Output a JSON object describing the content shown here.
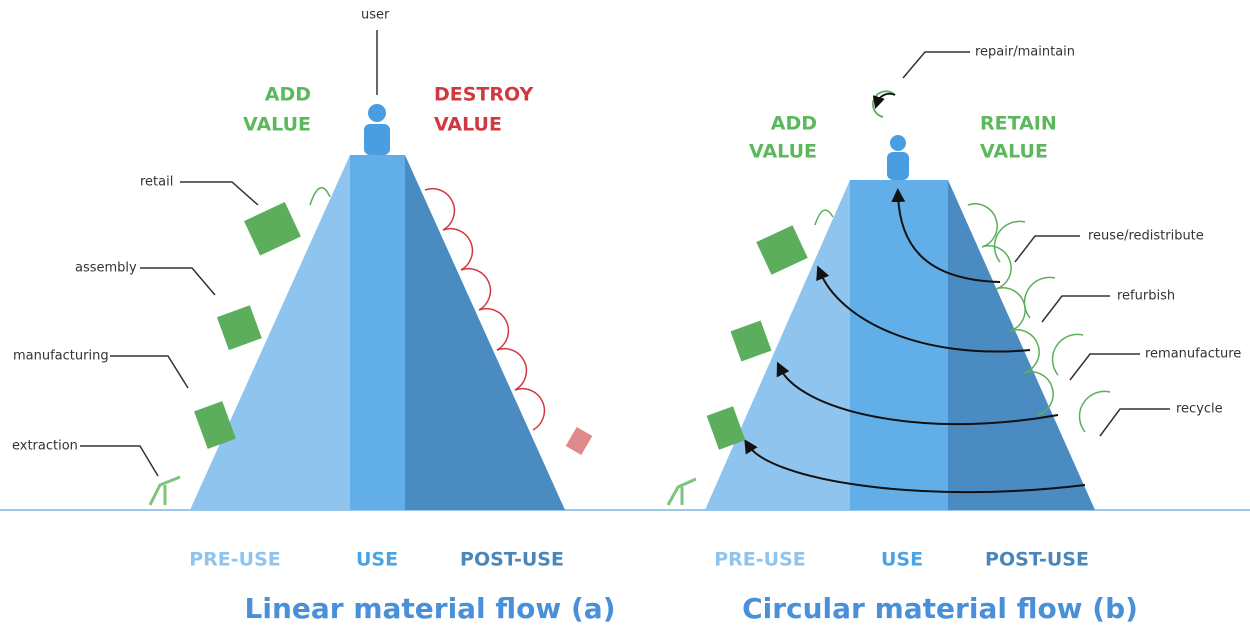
{
  "panels": [
    {
      "caption": "Linear material flow (a)",
      "top_label": "user",
      "left_value": [
        "ADD",
        "VALUE"
      ],
      "right_value": [
        "DESTROY",
        "VALUE"
      ],
      "stages": [
        "PRE-USE",
        "USE",
        "POST-USE"
      ],
      "left_callouts": [
        "retail",
        "assembly",
        "manufacturing",
        "extraction"
      ]
    },
    {
      "caption": "Circular material flow (b)",
      "top_label": "repair/maintain",
      "left_value": [
        "ADD",
        "VALUE"
      ],
      "right_value": [
        "RETAIN",
        "VALUE"
      ],
      "stages": [
        "PRE-USE",
        "USE",
        "POST-USE"
      ],
      "right_callouts": [
        "reuse/redistribute",
        "refurbish",
        "remanufacture",
        "recycle"
      ]
    }
  ]
}
